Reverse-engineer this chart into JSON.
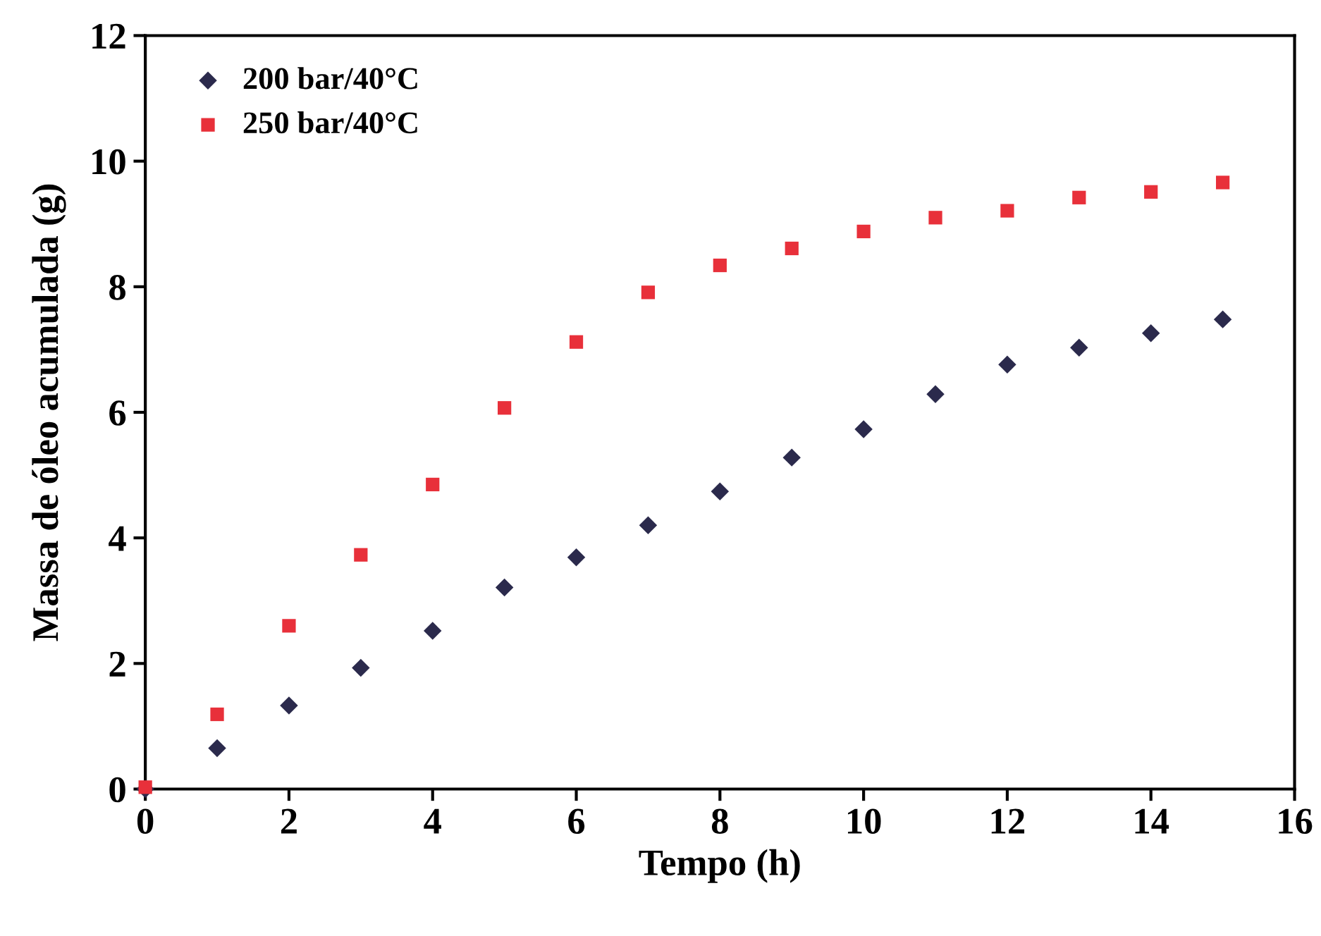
{
  "chart_data": {
    "type": "scatter",
    "xlabel": "Tempo (h)",
    "ylabel": "Massa de óleo acumulada (g)",
    "x": [
      0,
      1,
      2,
      3,
      4,
      5,
      6,
      7,
      8,
      9,
      10,
      11,
      12,
      13,
      14,
      15
    ],
    "series": [
      {
        "name": "200 bar/40°C",
        "color": "#2b2a4c",
        "marker": "diamond",
        "values": [
          0,
          0.65,
          1.33,
          1.93,
          2.52,
          3.21,
          3.69,
          4.2,
          4.74,
          5.28,
          5.73,
          6.29,
          6.76,
          7.03,
          7.26,
          7.48
        ]
      },
      {
        "name": "250 bar/40°C",
        "color": "#e8303a",
        "marker": "square",
        "values": [
          0.03,
          1.19,
          2.6,
          3.73,
          4.85,
          6.07,
          7.12,
          7.91,
          8.34,
          8.61,
          8.88,
          9.1,
          9.21,
          9.42,
          9.51,
          9.66
        ]
      }
    ],
    "xlim": [
      0,
      16
    ],
    "xticks": [
      0,
      2,
      4,
      6,
      8,
      10,
      12,
      14,
      16
    ],
    "ylim": [
      0,
      12
    ],
    "yticks": [
      0,
      2,
      4,
      6,
      8,
      10,
      12
    ],
    "grid": false,
    "legend": "top left"
  }
}
